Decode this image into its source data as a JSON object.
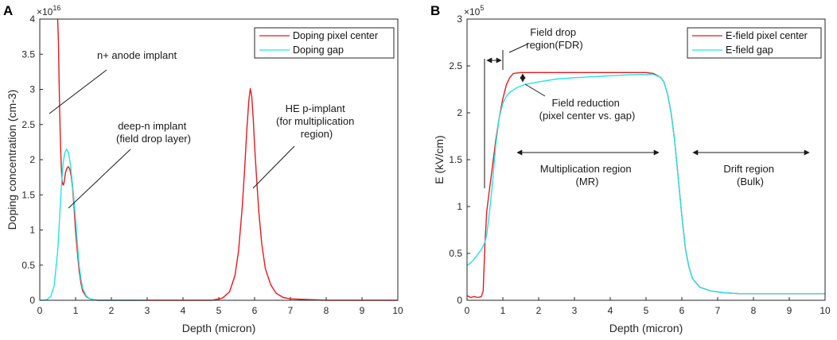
{
  "colors": {
    "red": "#e8191f",
    "cyan": "#25e4e4",
    "axis": "#262626",
    "annot": "#1a1a1a"
  },
  "chart_data": [
    {
      "panel_label": "A",
      "type": "line",
      "title": "",
      "xlabel": "Depth (micron)",
      "ylabel": "Doping concentration (cm-3)",
      "xlim": [
        0,
        10
      ],
      "ylim": [
        0,
        4
      ],
      "y_multiplier": "×10",
      "y_exponent": "16",
      "xticks": [
        0,
        1,
        2,
        3,
        4,
        5,
        6,
        7,
        8,
        9,
        10
      ],
      "yticks": [
        0,
        0.5,
        1,
        1.5,
        2,
        2.5,
        3,
        3.5,
        4
      ],
      "ytick_labels": [
        "0",
        "0.5",
        "1",
        "1.5",
        "2",
        "2.5",
        "3",
        "3.5",
        "4"
      ],
      "grid": false,
      "legend_position": "top-right",
      "series": [
        {
          "name": "Doping pixel center",
          "color": "#e8191f",
          "x": [
            0.5,
            0.52,
            0.54,
            0.56,
            0.58,
            0.6,
            0.62,
            0.64,
            0.66,
            0.68,
            0.7,
            0.72,
            0.76,
            0.8,
            0.84,
            0.88,
            0.92,
            0.96,
            1.0,
            1.05,
            1.1,
            1.15,
            1.2,
            1.3,
            1.4,
            1.6,
            2.0,
            3.0,
            4.0,
            4.8,
            5.1,
            5.3,
            5.45,
            5.55,
            5.65,
            5.72,
            5.78,
            5.84,
            5.88,
            5.92,
            5.96,
            6.0,
            6.06,
            6.12,
            6.2,
            6.3,
            6.45,
            6.6,
            6.8,
            7.0,
            7.5,
            8.0,
            9.0,
            10.0
          ],
          "y": [
            4.0,
            3.7,
            3.1,
            2.6,
            2.2,
            1.9,
            1.72,
            1.65,
            1.64,
            1.68,
            1.75,
            1.82,
            1.88,
            1.9,
            1.86,
            1.76,
            1.58,
            1.3,
            0.98,
            0.68,
            0.42,
            0.24,
            0.13,
            0.05,
            0.02,
            0.0,
            0.0,
            0.0,
            0.0,
            0.0,
            0.03,
            0.12,
            0.35,
            0.7,
            1.3,
            1.85,
            2.4,
            2.85,
            3.01,
            2.9,
            2.6,
            2.2,
            1.7,
            1.25,
            0.8,
            0.45,
            0.22,
            0.1,
            0.04,
            0.02,
            0.01,
            0.0,
            0.0,
            0.0
          ]
        },
        {
          "name": "Doping gap",
          "color": "#25e4e4",
          "x": [
            0.0,
            0.1,
            0.2,
            0.3,
            0.4,
            0.5,
            0.55,
            0.6,
            0.65,
            0.7,
            0.75,
            0.8,
            0.85,
            0.9,
            0.95,
            1.0,
            1.05,
            1.1,
            1.15,
            1.2,
            1.3,
            1.4,
            1.5,
            1.7,
            2.0,
            2.5,
            3.0
          ],
          "y": [
            0.0,
            0.0,
            0.01,
            0.05,
            0.2,
            0.7,
            1.15,
            1.6,
            1.95,
            2.1,
            2.15,
            2.1,
            1.95,
            1.72,
            1.45,
            1.15,
            0.8,
            0.5,
            0.3,
            0.17,
            0.06,
            0.02,
            0.01,
            0.0,
            0.0,
            0.0,
            0.0
          ]
        }
      ],
      "annotations": [
        {
          "lines": [
            "n+ anode implant"
          ],
          "from": [
            0.3,
            2.6
          ]
        },
        {
          "lines": [
            "deep-n implant",
            "(field drop layer)"
          ],
          "from": [
            0.8,
            1.3
          ]
        },
        {
          "lines": [
            "HE p-implant",
            "(for multiplication",
            "region)"
          ],
          "from": [
            5.9,
            1.6
          ]
        }
      ]
    },
    {
      "panel_label": "B",
      "type": "line",
      "title": "",
      "xlabel": "Depth (micron)",
      "ylabel": "E (kV/cm)",
      "xlim": [
        0,
        10
      ],
      "ylim": [
        0,
        3
      ],
      "y_multiplier": "×10",
      "y_exponent": "5",
      "xticks": [
        0,
        1,
        2,
        3,
        4,
        5,
        6,
        7,
        8,
        9,
        10
      ],
      "yticks": [
        0,
        0.5,
        1,
        1.5,
        2,
        2.5,
        3
      ],
      "ytick_labels": [
        "0",
        "0.5",
        "1",
        "1.5",
        "2",
        "2.5",
        "3"
      ],
      "grid": false,
      "legend_position": "top-right",
      "series": [
        {
          "name": "E-field pixel center",
          "color": "#e8191f",
          "x": [
            0.0,
            0.1,
            0.2,
            0.3,
            0.4,
            0.45,
            0.5,
            0.55,
            0.6,
            0.7,
            0.8,
            0.9,
            1.0,
            1.1,
            1.2,
            1.3,
            1.5,
            2.0,
            3.0,
            4.0,
            5.0,
            5.2,
            5.4,
            5.5,
            5.6,
            5.7,
            5.8,
            5.9,
            6.0,
            6.1,
            6.2,
            6.3,
            6.5,
            6.8,
            7.2,
            7.6,
            8.0,
            9.0,
            10.0
          ],
          "y": [
            0.05,
            0.03,
            0.04,
            0.03,
            0.04,
            0.1,
            0.6,
            0.95,
            1.1,
            1.4,
            1.7,
            1.95,
            2.15,
            2.3,
            2.38,
            2.42,
            2.43,
            2.43,
            2.43,
            2.43,
            2.43,
            2.42,
            2.38,
            2.33,
            2.2,
            2.0,
            1.7,
            1.3,
            0.9,
            0.55,
            0.35,
            0.23,
            0.14,
            0.1,
            0.08,
            0.07,
            0.07,
            0.07,
            0.07
          ]
        },
        {
          "name": "E-field gap",
          "color": "#25e4e4",
          "x": [
            0.0,
            0.1,
            0.2,
            0.3,
            0.4,
            0.5,
            0.55,
            0.6,
            0.7,
            0.8,
            0.9,
            1.0,
            1.1,
            1.2,
            1.4,
            1.6,
            2.0,
            2.5,
            3.0,
            3.5,
            4.0,
            4.5,
            5.0,
            5.2,
            5.4,
            5.5,
            5.6,
            5.7,
            5.8,
            5.9,
            6.0,
            6.1,
            6.2,
            6.3,
            6.5,
            6.8,
            7.2,
            7.6,
            8.0,
            9.0,
            10.0
          ],
          "y": [
            0.37,
            0.4,
            0.44,
            0.49,
            0.54,
            0.62,
            0.7,
            0.85,
            1.2,
            1.65,
            1.95,
            2.1,
            2.18,
            2.22,
            2.27,
            2.3,
            2.33,
            2.36,
            2.375,
            2.385,
            2.395,
            2.405,
            2.41,
            2.41,
            2.38,
            2.33,
            2.2,
            2.0,
            1.7,
            1.3,
            0.9,
            0.55,
            0.35,
            0.23,
            0.14,
            0.1,
            0.08,
            0.07,
            0.07,
            0.07,
            0.07
          ]
        }
      ],
      "annotations": [
        {
          "lines": [
            "Field drop",
            "region(FDR)"
          ]
        },
        {
          "lines": [
            "Field reduction",
            "(pixel center vs. gap)"
          ]
        },
        {
          "lines": [
            "Multiplication region",
            "(MR)"
          ],
          "span": [
            1.4,
            5.5
          ]
        },
        {
          "lines": [
            "Drift region",
            "(Bulk)"
          ],
          "span": [
            6.3,
            9.8
          ]
        }
      ]
    }
  ]
}
